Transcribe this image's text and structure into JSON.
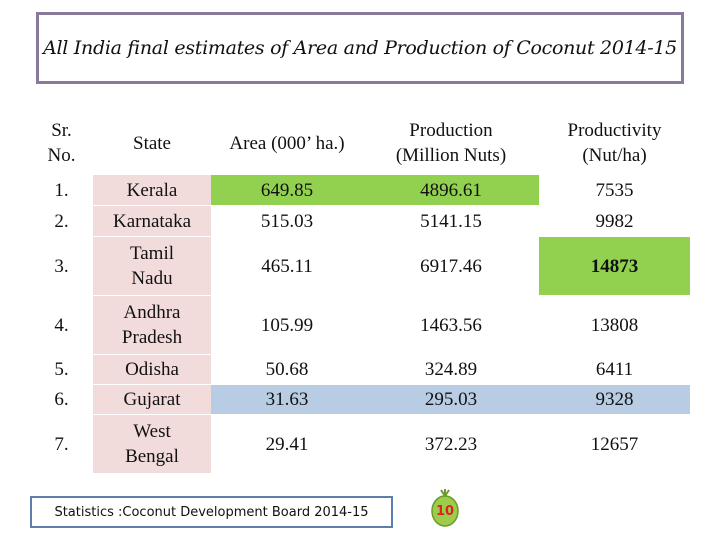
{
  "title": "All India final estimates of Area and Production of Coconut 2014-15",
  "table": {
    "headers": {
      "sr": [
        "Sr.",
        "No."
      ],
      "state": "State",
      "area": "Area (000’ ha.)",
      "production": [
        "Production",
        "(Million Nuts)"
      ],
      "productivity": [
        "Productivity",
        "(Nut/ha)"
      ]
    },
    "rows": [
      {
        "sr": "1.",
        "state": [
          "Kerala"
        ],
        "area": "649.85",
        "production": "4896.61",
        "productivity": "7535"
      },
      {
        "sr": "2.",
        "state": [
          "Karnataka"
        ],
        "area": "515.03",
        "production": "5141.15",
        "productivity": "9982"
      },
      {
        "sr": "3.",
        "state": [
          "Tamil",
          "Nadu"
        ],
        "area": "465.11",
        "production": "6917.46",
        "productivity": "14873"
      },
      {
        "sr": "4.",
        "state": [
          "Andhra",
          "Pradesh"
        ],
        "area": "105.99",
        "production": "1463.56",
        "productivity": "13808"
      },
      {
        "sr": "5.",
        "state": [
          "Odisha"
        ],
        "area": "50.68",
        "production": "324.89",
        "productivity": "6411"
      },
      {
        "sr": "6.",
        "state": [
          "Gujarat"
        ],
        "area": "31.63",
        "production": "295.03",
        "productivity": "9328"
      },
      {
        "sr": "7.",
        "state": [
          "West",
          "Bengal"
        ],
        "area": "29.41",
        "production": "372.23",
        "productivity": "12657"
      }
    ]
  },
  "colors": {
    "highlight_green": "#92d050",
    "state_column": "#f2dcdb",
    "gujarat_row": "#b8cce4",
    "title_border": "#8a7a9a",
    "source_border": "#5b7fa8",
    "page_number": "#dd2222"
  },
  "source": "Statistics :Coconut Development Board 2014-15",
  "page_number": "10",
  "page_number_icon": "coconut-icon"
}
